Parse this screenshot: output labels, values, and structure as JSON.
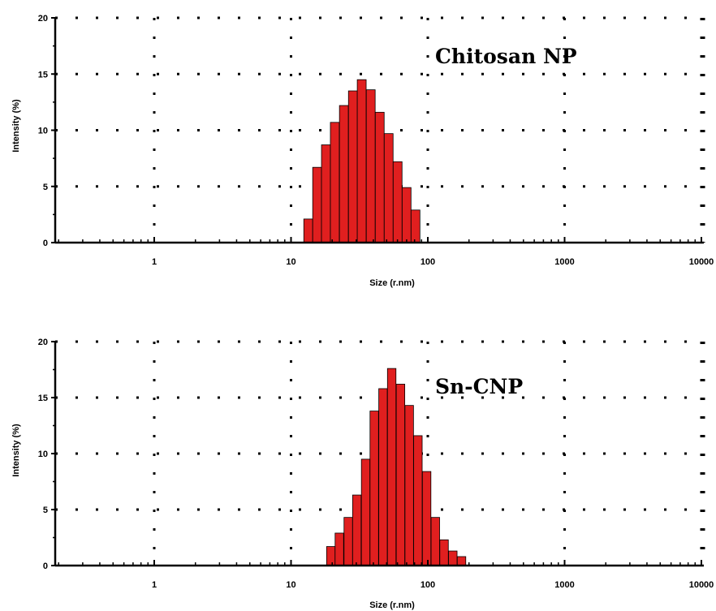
{
  "chart_data": [
    {
      "type": "bar",
      "title": "Chitosan NP",
      "xlabel": "Size (r.nm)",
      "ylabel": "Intensity (%)",
      "xscale": "log",
      "xlim": [
        0.2,
        12000
      ],
      "ylim": [
        0,
        20
      ],
      "x_ticks": [
        "1",
        "10",
        "100",
        "1000",
        "10000"
      ],
      "y_ticks": [
        "0",
        "5",
        "10",
        "15",
        "20"
      ],
      "grid": "dotted",
      "bar_color": "#e01f1f",
      "x": [
        12.4,
        14.4,
        16.7,
        19.4,
        22.6,
        26.3,
        30.5,
        35.5,
        41.3,
        48.0,
        55.8,
        64.9,
        75.4
      ],
      "values": [
        2.1,
        6.7,
        8.7,
        10.7,
        12.2,
        13.5,
        14.5,
        13.6,
        11.6,
        9.7,
        7.2,
        4.9,
        2.9
      ]
    },
    {
      "type": "bar",
      "title": "Sn-CNP",
      "xlabel": "Size (r.nm)",
      "ylabel": "Intensity (%)",
      "xscale": "log",
      "xlim": [
        0.2,
        12000
      ],
      "ylim": [
        0,
        20
      ],
      "x_ticks": [
        "1",
        "10",
        "100",
        "1000",
        "10000"
      ],
      "y_ticks": [
        "0",
        "5",
        "10",
        "15",
        "20"
      ],
      "grid": "dotted",
      "bar_color": "#e01f1f",
      "x": [
        18.2,
        21.0,
        24.4,
        28.2,
        32.7,
        37.8,
        43.8,
        50.7,
        58.8,
        68.1,
        78.8,
        91.3,
        105.7,
        122.4,
        141.8,
        164.2
      ],
      "values": [
        1.7,
        2.9,
        4.3,
        6.3,
        9.5,
        13.8,
        15.8,
        17.6,
        16.2,
        14.3,
        11.6,
        8.4,
        4.3,
        2.3,
        1.3,
        0.8
      ]
    }
  ]
}
